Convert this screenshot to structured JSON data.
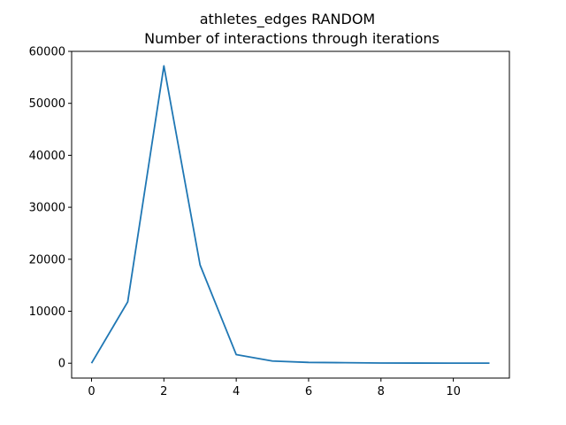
{
  "chart_data": {
    "type": "line",
    "title": "athletes_edges RANDOM",
    "subtitle": "Number of interactions through iterations",
    "xlabel": "",
    "ylabel": "",
    "xlim": [
      -0.55,
      11.55
    ],
    "ylim": [
      -2860,
      60000
    ],
    "grid": false,
    "legend": "none",
    "x_ticks": [
      0,
      2,
      4,
      6,
      8,
      10
    ],
    "y_ticks": [
      0,
      10000,
      20000,
      30000,
      40000,
      50000,
      60000
    ],
    "series": [
      {
        "color": "#1f77b4",
        "x": [
          0,
          1,
          2,
          3,
          4,
          5,
          6,
          7,
          8,
          9,
          10,
          11
        ],
        "y": [
          0,
          11800,
          57200,
          18900,
          1650,
          420,
          150,
          100,
          40,
          25,
          15,
          10
        ]
      }
    ]
  }
}
